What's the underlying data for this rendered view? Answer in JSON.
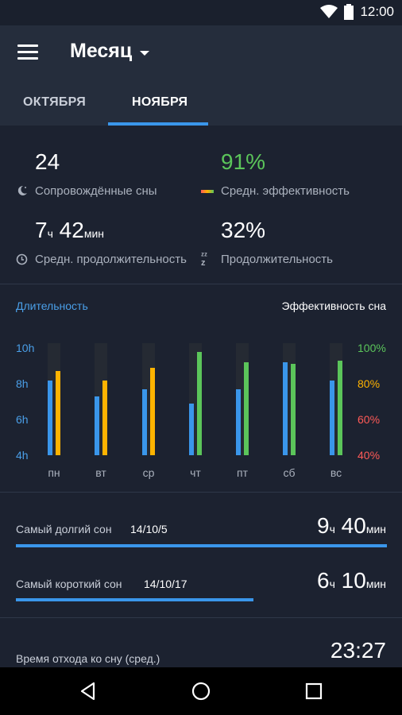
{
  "status": {
    "time": "12:00"
  },
  "appbar": {
    "title": "Месяц"
  },
  "tabs": [
    {
      "label": "ОКТЯБРЯ"
    },
    {
      "label": "НОЯБРЯ"
    }
  ],
  "stats": {
    "tracked": {
      "value": "24",
      "label": "Сопровождённые сны"
    },
    "efficiency": {
      "value": "91%",
      "label": "Средн. эффективность"
    },
    "duration": {
      "hours": "7",
      "hours_unit": "ч",
      "minutes": "42",
      "minutes_unit": "мин",
      "label": "Средн. продолжительность"
    },
    "deep": {
      "value": "32%",
      "label": "Продолжительность"
    }
  },
  "chart": {
    "left_title": "Длительность",
    "right_title": "Эффективность сна",
    "colors": {
      "duration": "#3a96ea",
      "eff_high": "#5bc55a",
      "eff_mid": "#ffb300",
      "axis_low": "#ff5a57"
    },
    "y_left_ticks": [
      "10h",
      "8h",
      "6h",
      "4h"
    ],
    "y_right_ticks": [
      "100%",
      "80%",
      "60%",
      "40%"
    ]
  },
  "chart_data": {
    "type": "bar",
    "categories": [
      "пн",
      "вт",
      "ср",
      "чт",
      "пт",
      "сб",
      "вс"
    ],
    "series": [
      {
        "values": [
          8.2,
          7.3,
          7.7,
          6.9,
          7.7,
          9.2,
          8.2
        ]
      },
      {
        "values": [
          87,
          82,
          89,
          98,
          92,
          91,
          93
        ]
      }
    ],
    "ylim_left": [
      4,
      10
    ],
    "ylim_right": [
      40,
      100
    ]
  },
  "records": {
    "longest": {
      "label": "Самый долгий сон",
      "date": "14/10/5",
      "hours": "9",
      "h_unit": "ч",
      "minutes": "40",
      "m_unit": "мин",
      "fraction": 1.0
    },
    "shortest": {
      "label": "Самый короткий сон",
      "date": "14/10/17",
      "hours": "6",
      "h_unit": "ч",
      "minutes": "10",
      "m_unit": "мин",
      "fraction": 0.64
    },
    "bedtime": {
      "label": "Время отхода ко сну (сред.)",
      "value": "23:27"
    }
  }
}
